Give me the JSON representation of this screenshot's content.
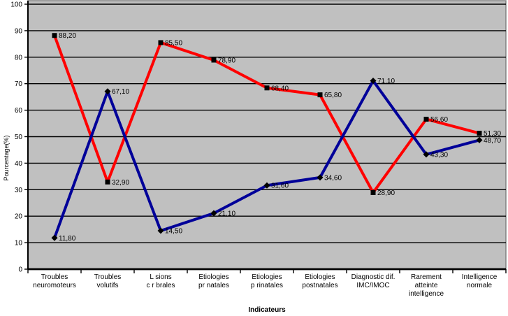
{
  "chart_data": {
    "type": "line",
    "title": "",
    "xlabel": "Indicateurs",
    "ylabel": "Pourcentage(%)",
    "ylim": [
      0,
      100
    ],
    "ytick_step": 10,
    "yticks": [
      "0",
      "10",
      "20",
      "30",
      "40",
      "50",
      "60",
      "70",
      "80",
      "90",
      "100"
    ],
    "grid": true,
    "legend_position": "none",
    "plot_background": "#c0c0c0",
    "plot_border_color": "#808080",
    "grid_color": "#000000",
    "axis_color": "#000000",
    "categories": [
      "Troubles neuromoteurs",
      "Troubles volutifs",
      "L sions c r brales",
      "Etiologies pr natales",
      "Etiologies p rinatales",
      "Etiologies postnatales",
      "Diagnostic dif. IMC/IMOC",
      "Rarement atteinte intelligence",
      "Intelligence normale"
    ],
    "category_lines": [
      [
        "Troubles",
        "neuromoteurs"
      ],
      [
        "Troubles",
        "volutifs"
      ],
      [
        "L sions",
        "c r brales"
      ],
      [
        "Etiologies",
        "pr natales"
      ],
      [
        "Etiologies",
        "p rinatales"
      ],
      [
        "Etiologies",
        "postnatales"
      ],
      [
        "Diagnostic dif.",
        "IMC/IMOC"
      ],
      [
        "Rarement",
        "atteinte",
        "intelligence"
      ],
      [
        "Intelligence",
        "normale"
      ]
    ],
    "series": [
      {
        "id": "series_red",
        "color": "#ff0000",
        "marker": "square",
        "marker_color": "#000000",
        "values": [
          88.2,
          32.9,
          85.5,
          78.9,
          68.4,
          65.8,
          28.9,
          56.6,
          51.3
        ],
        "labels": [
          "88,20",
          "32,90",
          "85,50",
          "78,90",
          "68,40",
          "65,80",
          "28,90",
          "56,60",
          "51,30"
        ]
      },
      {
        "id": "series_blue",
        "color": "#000099",
        "marker": "diamond",
        "marker_color": "#000000",
        "values": [
          11.8,
          67.1,
          14.5,
          21.1,
          31.6,
          34.6,
          71.1,
          43.3,
          48.7
        ],
        "labels": [
          "11,80",
          "67,10",
          "14,50",
          "21,10",
          "31,60",
          "34,60",
          "71,10",
          "43,30",
          "48,70"
        ]
      }
    ]
  }
}
